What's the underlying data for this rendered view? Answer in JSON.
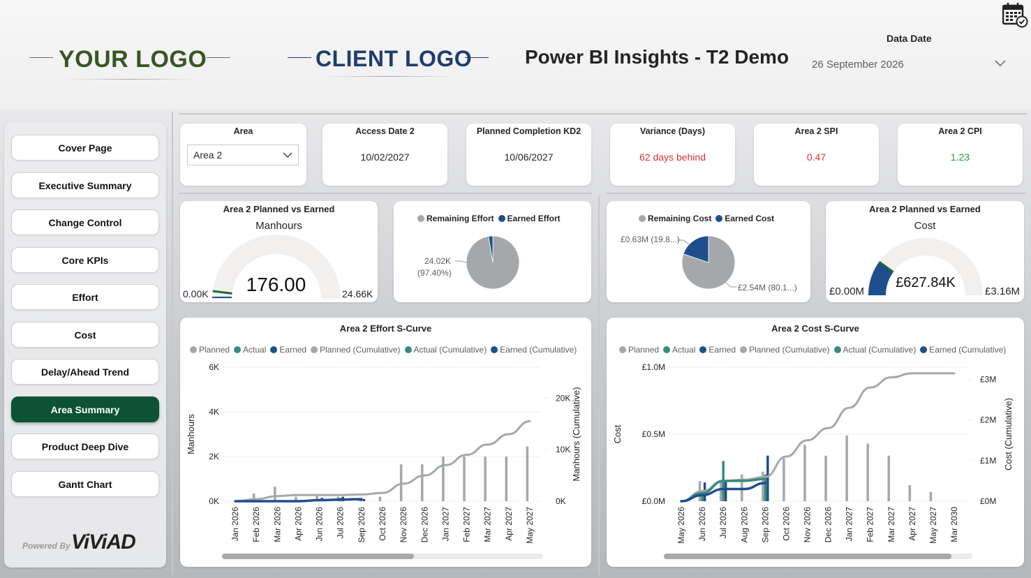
{
  "header": {
    "your_logo": "YOUR LOGO",
    "client_logo": "CLIENT LOGO",
    "title": "Power BI Insights - T2 Demo",
    "data_date_label": "Data Date",
    "data_date_value": "26 September 2026"
  },
  "sidebar": {
    "items": [
      {
        "label": "Cover Page"
      },
      {
        "label": "Executive Summary"
      },
      {
        "label": "Change Control"
      },
      {
        "label": "Core KPIs"
      },
      {
        "label": "Effort"
      },
      {
        "label": "Cost"
      },
      {
        "label": "Delay/Ahead Trend"
      },
      {
        "label": "Area Summary",
        "active": true
      },
      {
        "label": "Product Deep Dive"
      },
      {
        "label": "Gantt Chart"
      }
    ],
    "powered_by": "Powered By",
    "brand": "ViViAD"
  },
  "kpis": {
    "area": {
      "label": "Area",
      "value": "Area 2"
    },
    "access_date": {
      "label": "Access Date 2",
      "value": "10/02/2027"
    },
    "planned_completion": {
      "label": "Planned Completion KD2",
      "value": "10/06/2027"
    },
    "variance": {
      "label": "Variance (Days)",
      "value": "62 days behind"
    },
    "spi": {
      "label": "Area 2 SPI",
      "value": "0.47"
    },
    "cpi": {
      "label": "Area 2 CPI",
      "value": "1.23"
    }
  },
  "gauge_effort": {
    "title": "Area 2 Planned vs Earned",
    "subtitle": "Manhours",
    "value_label": "176.00",
    "min_label": "0.00K",
    "max_label": "24.66K",
    "value": 176,
    "max": 24660
  },
  "pie_effort": {
    "legend": [
      "Remaining Effort",
      "Earned Effort"
    ],
    "label_value": "24.02K",
    "label_pct": "(97.40%)",
    "earned_fraction": 0.026
  },
  "pie_cost": {
    "legend": [
      "Remaining Cost",
      "Earned Cost"
    ],
    "earned_label": "£0.63M (19.8...)",
    "remaining_label": "£2.54M (80.1...)",
    "earned_fraction": 0.198
  },
  "gauge_cost": {
    "title": "Area 2 Planned vs Earned",
    "subtitle": "Cost",
    "value_label": "£627.84K",
    "min_label": "£0.00M",
    "max_label": "£3.16M",
    "value": 627.84,
    "max": 3160
  },
  "legend_series": [
    "Planned",
    "Actual",
    "Earned",
    "Planned (Cumulative)",
    "Actual (Cumulative)",
    "Earned (Cumulative)"
  ],
  "colors": {
    "planned": "#a5a8ab",
    "actual": "#3a8a7e",
    "earned": "#1f4e8c",
    "accent_green": "#0d5233",
    "target_green": "#1e6b3a"
  },
  "chart_data": [
    {
      "type": "bar",
      "title": "Area 2 Effort S-Curve",
      "ylabel": "Manhours",
      "y2label": "Manhours (Cumulative)",
      "ylim": [
        0,
        6000
      ],
      "y2lim": [
        0,
        26000
      ],
      "yticks": [
        "0K",
        "2K",
        "4K",
        "6K"
      ],
      "y2ticks": [
        "0K",
        "10K",
        "20K"
      ],
      "categories": [
        "Jan 2026",
        "Feb 2026",
        "Mar 2026",
        "Apr 2026",
        "Jun 2026",
        "Jul 2026",
        "Sep 2026",
        "Oct 2026",
        "Nov 2026",
        "Dec 2026",
        "Jan 2027",
        "Feb 2027",
        "Mar 2027",
        "Apr 2027",
        "May 2027"
      ],
      "series": [
        {
          "name": "Planned",
          "values": [
            0,
            350,
            650,
            200,
            250,
            200,
            100,
            200,
            1650,
            1650,
            2000,
            2000,
            2000,
            2000,
            2450
          ]
        },
        {
          "name": "Actual",
          "values": [
            0,
            0,
            0,
            0,
            100,
            150,
            50,
            0,
            0,
            0,
            0,
            0,
            0,
            0,
            0
          ]
        },
        {
          "name": "Earned",
          "values": [
            0,
            0,
            0,
            0,
            150,
            200,
            100,
            0,
            0,
            0,
            0,
            0,
            0,
            0,
            0
          ]
        },
        {
          "name": "Planned (Cumulative)",
          "values": [
            0,
            400,
            1000,
            1200,
            1200,
            1200,
            1300,
            1600,
            3400,
            5000,
            7000,
            9000,
            11000,
            13000,
            15500
          ]
        },
        {
          "name": "Earned (Cumulative)",
          "values": [
            0,
            0,
            0,
            0,
            200,
            300,
            400,
            null,
            null,
            null,
            null,
            null,
            null,
            null,
            null
          ]
        }
      ]
    },
    {
      "type": "bar",
      "title": "Area 2 Cost S-Curve",
      "ylabel": "Cost",
      "y2label": "Cost (Cumulative)",
      "ylim": [
        0,
        1000000
      ],
      "y2lim": [
        0,
        3300000
      ],
      "yticks": [
        "£0.0M",
        "£0.5M",
        "£1.0M"
      ],
      "y2ticks": [
        "£0M",
        "£1M",
        "£2M",
        "£3M"
      ],
      "categories": [
        "May 2026",
        "Jun 2026",
        "Jul 2026",
        "Aug 2026",
        "Sep 2026",
        "Oct 2026",
        "Nov 2026",
        "Dec 2026",
        "Jan 2027",
        "Feb 2027",
        "Mar 2027",
        "Apr 2027",
        "May 2027",
        "Mar 2030"
      ],
      "series": [
        {
          "name": "Planned",
          "values": [
            0,
            150000,
            150000,
            200000,
            220000,
            320000,
            420000,
            340000,
            490000,
            430000,
            340000,
            120000,
            70000,
            0
          ]
        },
        {
          "name": "Actual",
          "values": [
            0,
            50000,
            300000,
            0,
            200000,
            0,
            0,
            0,
            0,
            0,
            0,
            0,
            0,
            0
          ]
        },
        {
          "name": "Earned",
          "values": [
            0,
            140000,
            150000,
            0,
            340000,
            0,
            0,
            0,
            0,
            0,
            0,
            0,
            0,
            0
          ]
        },
        {
          "name": "Planned (Cumulative)",
          "values": [
            0,
            250000,
            500000,
            530000,
            600000,
            1100000,
            1500000,
            1800000,
            2300000,
            2800000,
            3050000,
            3150000,
            3150000,
            3150000
          ]
        },
        {
          "name": "Actual (Cumulative)",
          "values": [
            0,
            200000,
            500000,
            500000,
            550000,
            null,
            null,
            null,
            null,
            null,
            null,
            null,
            null,
            null
          ]
        },
        {
          "name": "Earned (Cumulative)",
          "values": [
            0,
            150000,
            300000,
            300000,
            450000,
            null,
            null,
            null,
            null,
            null,
            null,
            null,
            null,
            null
          ]
        }
      ]
    }
  ]
}
